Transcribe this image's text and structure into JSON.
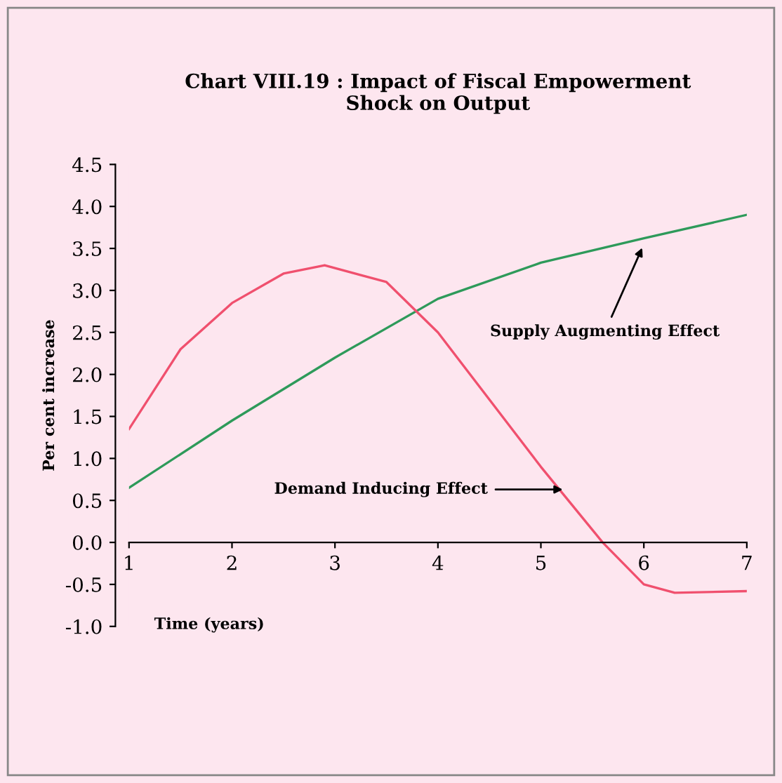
{
  "chart_data": {
    "type": "line",
    "title": "Chart VIII.19 : Impact of Fiscal Empowerment\nShock on Output",
    "xlabel": "Time (years)",
    "ylabel": "Per cent increase",
    "xlim": [
      1,
      7
    ],
    "xticks": [
      1,
      2,
      3,
      4,
      5,
      6,
      7
    ],
    "ylim": [
      -1.0,
      4.5
    ],
    "yticks": [
      {
        "value": -1.0,
        "label": "-1.0"
      },
      {
        "value": -0.5,
        "label": "-0.5"
      },
      {
        "value": 0.0,
        "label": "0.0"
      },
      {
        "value": 0.5,
        "label": "0.5"
      },
      {
        "value": 1.0,
        "label": "1.0"
      },
      {
        "value": 1.5,
        "label": "1.5"
      },
      {
        "value": 2.0,
        "label": "2.0"
      },
      {
        "value": 2.5,
        "label": "2.5"
      },
      {
        "value": 3.0,
        "label": "3.0"
      },
      {
        "value": 3.5,
        "label": "3.5"
      },
      {
        "value": 4.0,
        "label": "4.0"
      },
      {
        "value": 4.5,
        "label": "4.5"
      }
    ],
    "series": [
      {
        "color": "#2e9a5a",
        "x": [
          1,
          2,
          3,
          4,
          5,
          6,
          7
        ],
        "values": [
          0.65,
          1.45,
          2.2,
          2.9,
          3.33,
          3.62,
          3.9
        ]
      },
      {
        "color": "#f0506e",
        "x": [
          1,
          1.5,
          2,
          2.5,
          2.9,
          3.5,
          4,
          4.5,
          5,
          5.5,
          5.6,
          6,
          6.3,
          7
        ],
        "values": [
          1.35,
          2.3,
          2.85,
          3.2,
          3.3,
          3.1,
          2.5,
          1.7,
          0.9,
          0.15,
          0.0,
          -0.5,
          -0.6,
          -0.58
        ]
      }
    ],
    "annotations": [
      {
        "text": "Supply Augmenting Effect",
        "x": 6.0,
        "y": 3.55
      },
      {
        "text": "Demand Inducing Effect",
        "x": 5.25,
        "y": 0.63
      }
    ],
    "grid": false,
    "legend": false,
    "marker": "none",
    "line_style": "solid"
  }
}
